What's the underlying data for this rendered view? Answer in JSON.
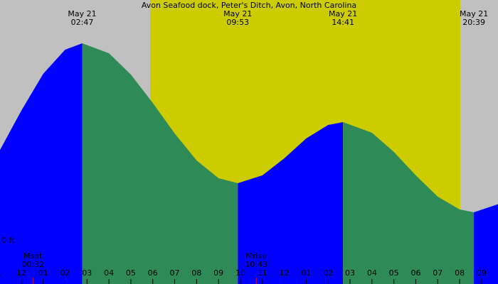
{
  "chart_data": {
    "type": "tide",
    "title": "Avon Seafood dock, Peter's Ditch, Avon, North Carolina",
    "x": [
      -1,
      0,
      1,
      2,
      2.78,
      4,
      5,
      6,
      7,
      8,
      9,
      9.88,
      11,
      12,
      13,
      14,
      14.68,
      16,
      17,
      18,
      19,
      20,
      20.65,
      22
    ],
    "values": [
      1.25,
      1.82,
      2.34,
      2.68,
      2.77,
      2.63,
      2.33,
      1.93,
      1.5,
      1.12,
      0.87,
      0.8,
      0.91,
      1.15,
      1.43,
      1.62,
      1.66,
      1.51,
      1.24,
      0.91,
      0.61,
      0.43,
      0.39,
      0.53
    ],
    "rising_color": "#0000ff",
    "falling_color": "#2e8b57",
    "night_color": "#c0c0c0",
    "day_color": "#cccc00",
    "daylight": [
      5.88,
      20.03
    ],
    "xlim": [
      -0.97,
      21.75
    ],
    "ylim": [
      -0.62,
      3.38
    ],
    "yticks": [
      {
        "value": 0,
        "label": "0 ft"
      }
    ],
    "xticks": [
      {
        "value": -1,
        "label": "1"
      },
      {
        "value": 0,
        "label": "12"
      },
      {
        "value": 1,
        "label": "01"
      },
      {
        "value": 2,
        "label": "02"
      },
      {
        "value": 3,
        "label": "03"
      },
      {
        "value": 4,
        "label": "04"
      },
      {
        "value": 5,
        "label": "05"
      },
      {
        "value": 6,
        "label": "06"
      },
      {
        "value": 7,
        "label": "07"
      },
      {
        "value": 8,
        "label": "08"
      },
      {
        "value": 9,
        "label": "09"
      },
      {
        "value": 10,
        "label": "10"
      },
      {
        "value": 11,
        "label": "11"
      },
      {
        "value": 12,
        "label": "12"
      },
      {
        "value": 13,
        "label": "01"
      },
      {
        "value": 14,
        "label": "02"
      },
      {
        "value": 15,
        "label": "03"
      },
      {
        "value": 16,
        "label": "04"
      },
      {
        "value": 17,
        "label": "05"
      },
      {
        "value": 18,
        "label": "06"
      },
      {
        "value": 19,
        "label": "07"
      },
      {
        "value": 20,
        "label": "08"
      },
      {
        "value": 21,
        "label": "09"
      }
    ],
    "extremes": [
      {
        "x": 2.78,
        "date": "May 21",
        "time": "02:47"
      },
      {
        "x": 9.88,
        "date": "May 21",
        "time": "09:53"
      },
      {
        "x": 14.68,
        "date": "May 21",
        "time": "14:41"
      },
      {
        "x": 20.65,
        "date": "May 21",
        "time": "20:39"
      }
    ],
    "moon_events": [
      {
        "x": 0.53,
        "label": "Mset",
        "time": "00:32"
      },
      {
        "x": 10.72,
        "label": "Mrise",
        "time": "10:43"
      }
    ],
    "moon_color": "#ff0000"
  }
}
